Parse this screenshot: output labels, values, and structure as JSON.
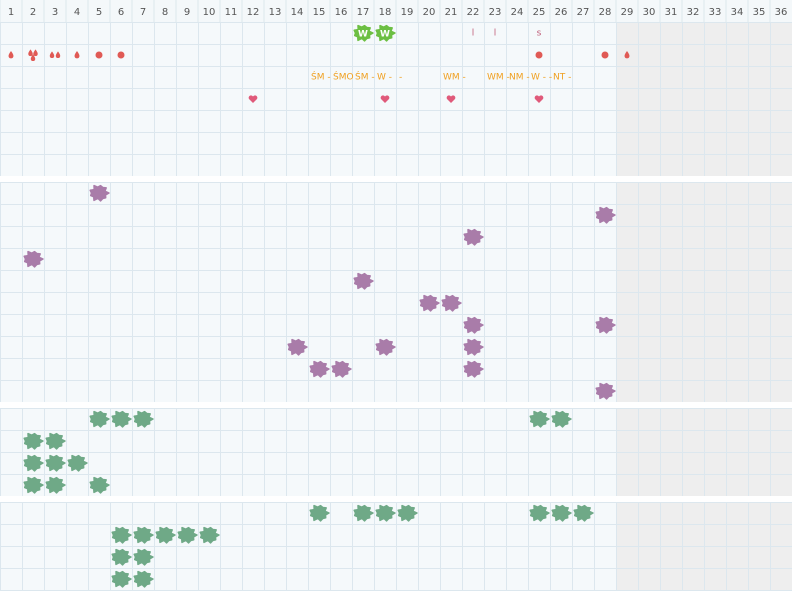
{
  "header": {
    "days": [
      1,
      2,
      3,
      4,
      5,
      6,
      7,
      8,
      9,
      10,
      11,
      12,
      13,
      14,
      15,
      16,
      17,
      18,
      19,
      20,
      21,
      22,
      23,
      24,
      25,
      26,
      27,
      28,
      29,
      30,
      31,
      32,
      33,
      34,
      35,
      36
    ]
  },
  "sections": [
    {
      "rows": [
        [
          {
            "day": 17,
            "mark": "w-blob",
            "label": "W"
          },
          {
            "day": 18,
            "mark": "w-blob",
            "label": "W"
          },
          {
            "day": 22,
            "mark": "letter",
            "label": "l"
          },
          {
            "day": 23,
            "mark": "letter",
            "label": "l"
          },
          {
            "day": 25,
            "mark": "letter",
            "label": "s"
          }
        ],
        [
          {
            "day": 1,
            "mark": "drop"
          },
          {
            "day": 2,
            "mark": "double-drop"
          },
          {
            "day": 3,
            "mark": "two-drops"
          },
          {
            "day": 4,
            "mark": "drop"
          },
          {
            "day": 5,
            "mark": "dot"
          },
          {
            "day": 6,
            "mark": "dot"
          },
          {
            "day": 25,
            "mark": "dot"
          },
          {
            "day": 28,
            "mark": "dot"
          },
          {
            "day": 29,
            "mark": "drop"
          }
        ],
        [
          {
            "day": 15,
            "mark": "text",
            "label": "ŚM -"
          },
          {
            "day": 16,
            "mark": "text",
            "label": "ŚMO"
          },
          {
            "day": 17,
            "mark": "text",
            "label": "ŚM -"
          },
          {
            "day": 18,
            "mark": "text",
            "label": "W -"
          },
          {
            "day": 19,
            "mark": "text",
            "label": "-"
          },
          {
            "day": 21,
            "mark": "text",
            "label": "WM -"
          },
          {
            "day": 23,
            "mark": "text",
            "label": "WM -"
          },
          {
            "day": 24,
            "mark": "text",
            "label": "NM -"
          },
          {
            "day": 25,
            "mark": "text",
            "label": "W - -"
          },
          {
            "day": 26,
            "mark": "text",
            "label": "NT -"
          }
        ],
        [
          {
            "day": 12,
            "mark": "heart"
          },
          {
            "day": 18,
            "mark": "heart"
          },
          {
            "day": 21,
            "mark": "heart"
          },
          {
            "day": 25,
            "mark": "heart"
          }
        ],
        [],
        [],
        []
      ]
    },
    {
      "color": "#a97ca9",
      "rows": [
        [
          5
        ],
        [
          28
        ],
        [
          22
        ],
        [
          2
        ],
        [
          17
        ],
        [
          20,
          21
        ],
        [
          22,
          28
        ],
        [
          14,
          18,
          22
        ],
        [
          15,
          16,
          22
        ],
        [
          28
        ]
      ]
    },
    {
      "color": "#6fa987",
      "rows": [
        [
          5,
          6,
          7,
          25,
          26
        ],
        [
          2,
          3
        ],
        [
          2,
          3,
          4
        ],
        [
          2,
          3,
          5
        ]
      ]
    },
    {
      "color": "#6fa987",
      "rows": [
        [
          15,
          17,
          18,
          19,
          25,
          26,
          27
        ],
        [
          6,
          7,
          8,
          9,
          10
        ],
        [
          6,
          7
        ],
        [
          6,
          7
        ]
      ]
    }
  ]
}
